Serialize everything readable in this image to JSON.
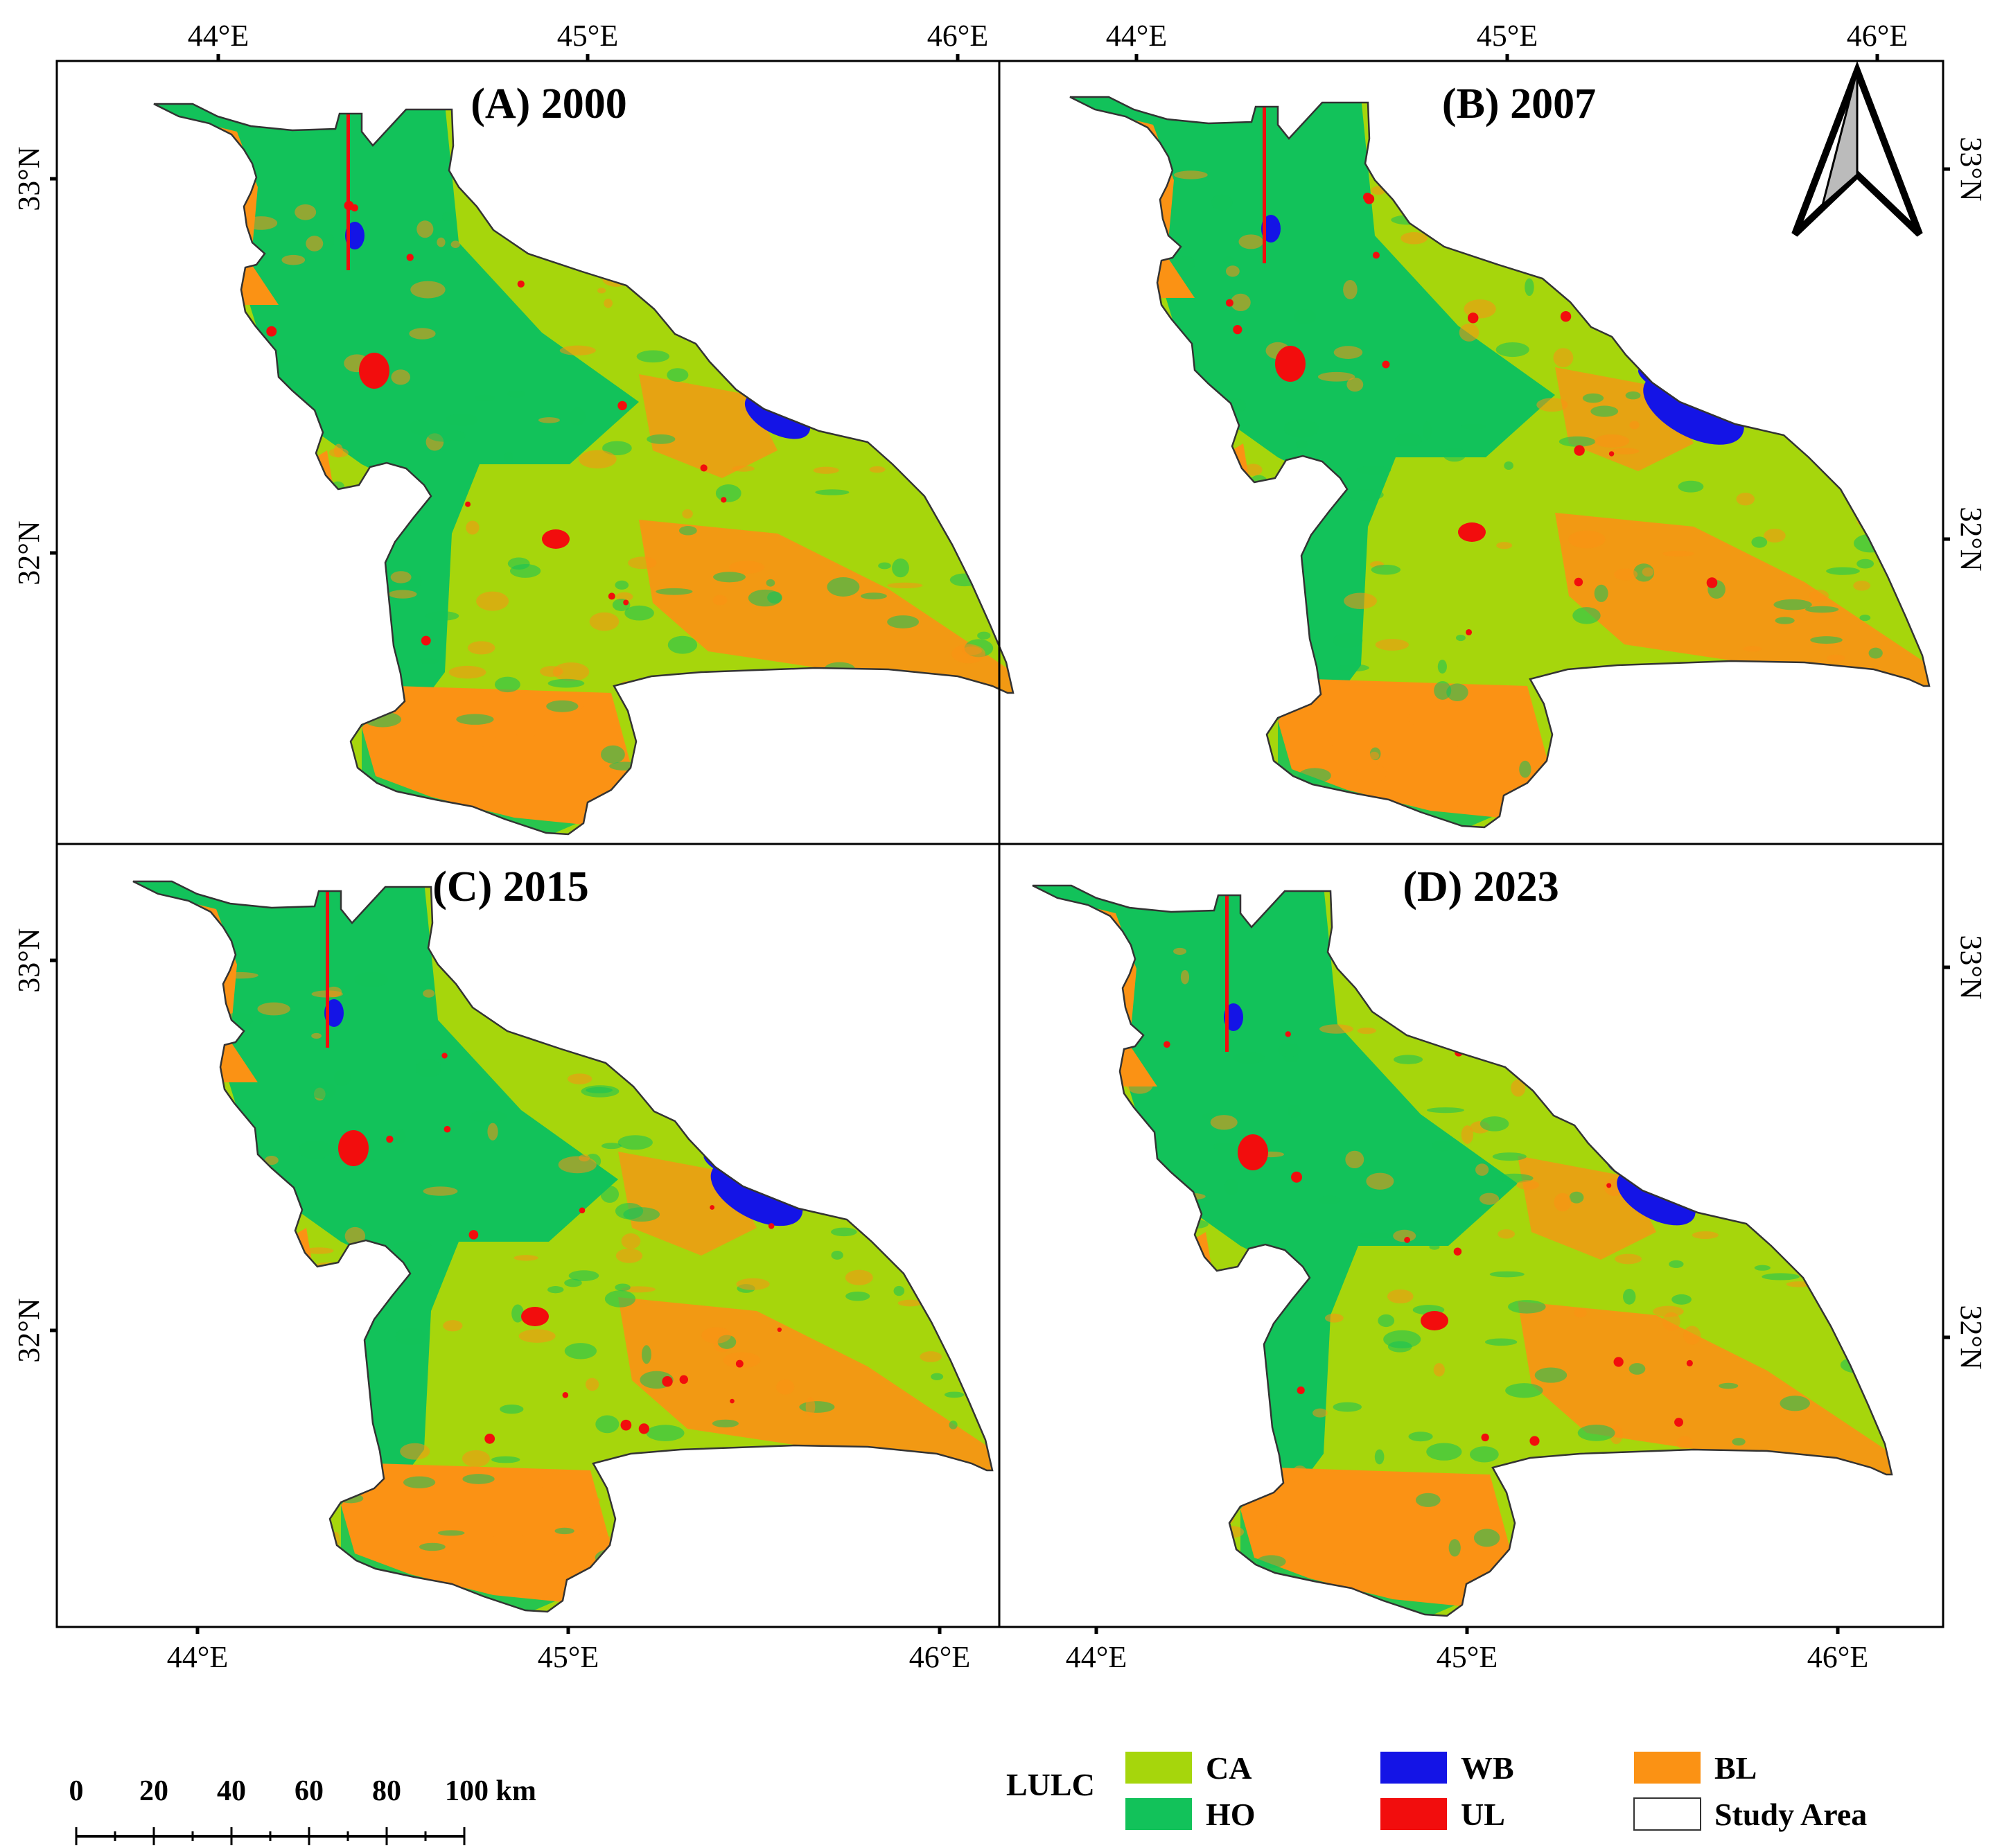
{
  "colors": {
    "CA": "#a6d60c",
    "HO": "#12c25a",
    "WB": "#1414e6",
    "UL": "#f20d0d",
    "BL": "#fb9214",
    "study_area_fill": "#ffffff",
    "frame": "#000000"
  },
  "panels": [
    {
      "id": "A",
      "title": "(A) 2000",
      "lon_top": [
        "44°E",
        "45°E",
        "46°E"
      ],
      "lat_left": [
        "33°N",
        "32°N"
      ],
      "lon_bottom": [],
      "lat_right": []
    },
    {
      "id": "B",
      "title": "(B) 2007",
      "lon_top": [
        "44°E",
        "45°E",
        "46°E"
      ],
      "lat_left": [],
      "lon_bottom": [],
      "lat_right": [
        "33°N",
        "32°N"
      ]
    },
    {
      "id": "C",
      "title": "(C) 2015",
      "lon_top": [],
      "lat_left": [
        "33°N",
        "32°N"
      ],
      "lon_bottom": [
        "44°E",
        "45°E",
        "46°E"
      ],
      "lat_right": []
    },
    {
      "id": "D",
      "title": "(D) 2023",
      "lon_top": [],
      "lat_left": [],
      "lon_bottom": [
        "44°E",
        "45°E",
        "46°E"
      ],
      "lat_right": [
        "33°N",
        "32°N"
      ]
    }
  ],
  "north_arrow": "north-arrow-icon",
  "scale_bar": {
    "labels": [
      "0",
      "20",
      "40",
      "60",
      "80",
      "100 km"
    ]
  },
  "legend": {
    "title": "LULC",
    "items": [
      {
        "key": "CA",
        "label": "CA"
      },
      {
        "key": "HO",
        "label": "HO"
      },
      {
        "key": "WB",
        "label": "WB"
      },
      {
        "key": "UL",
        "label": "UL"
      },
      {
        "key": "BL",
        "label": "BL"
      },
      {
        "key": "study_area_fill",
        "label": "Study Area"
      }
    ]
  }
}
